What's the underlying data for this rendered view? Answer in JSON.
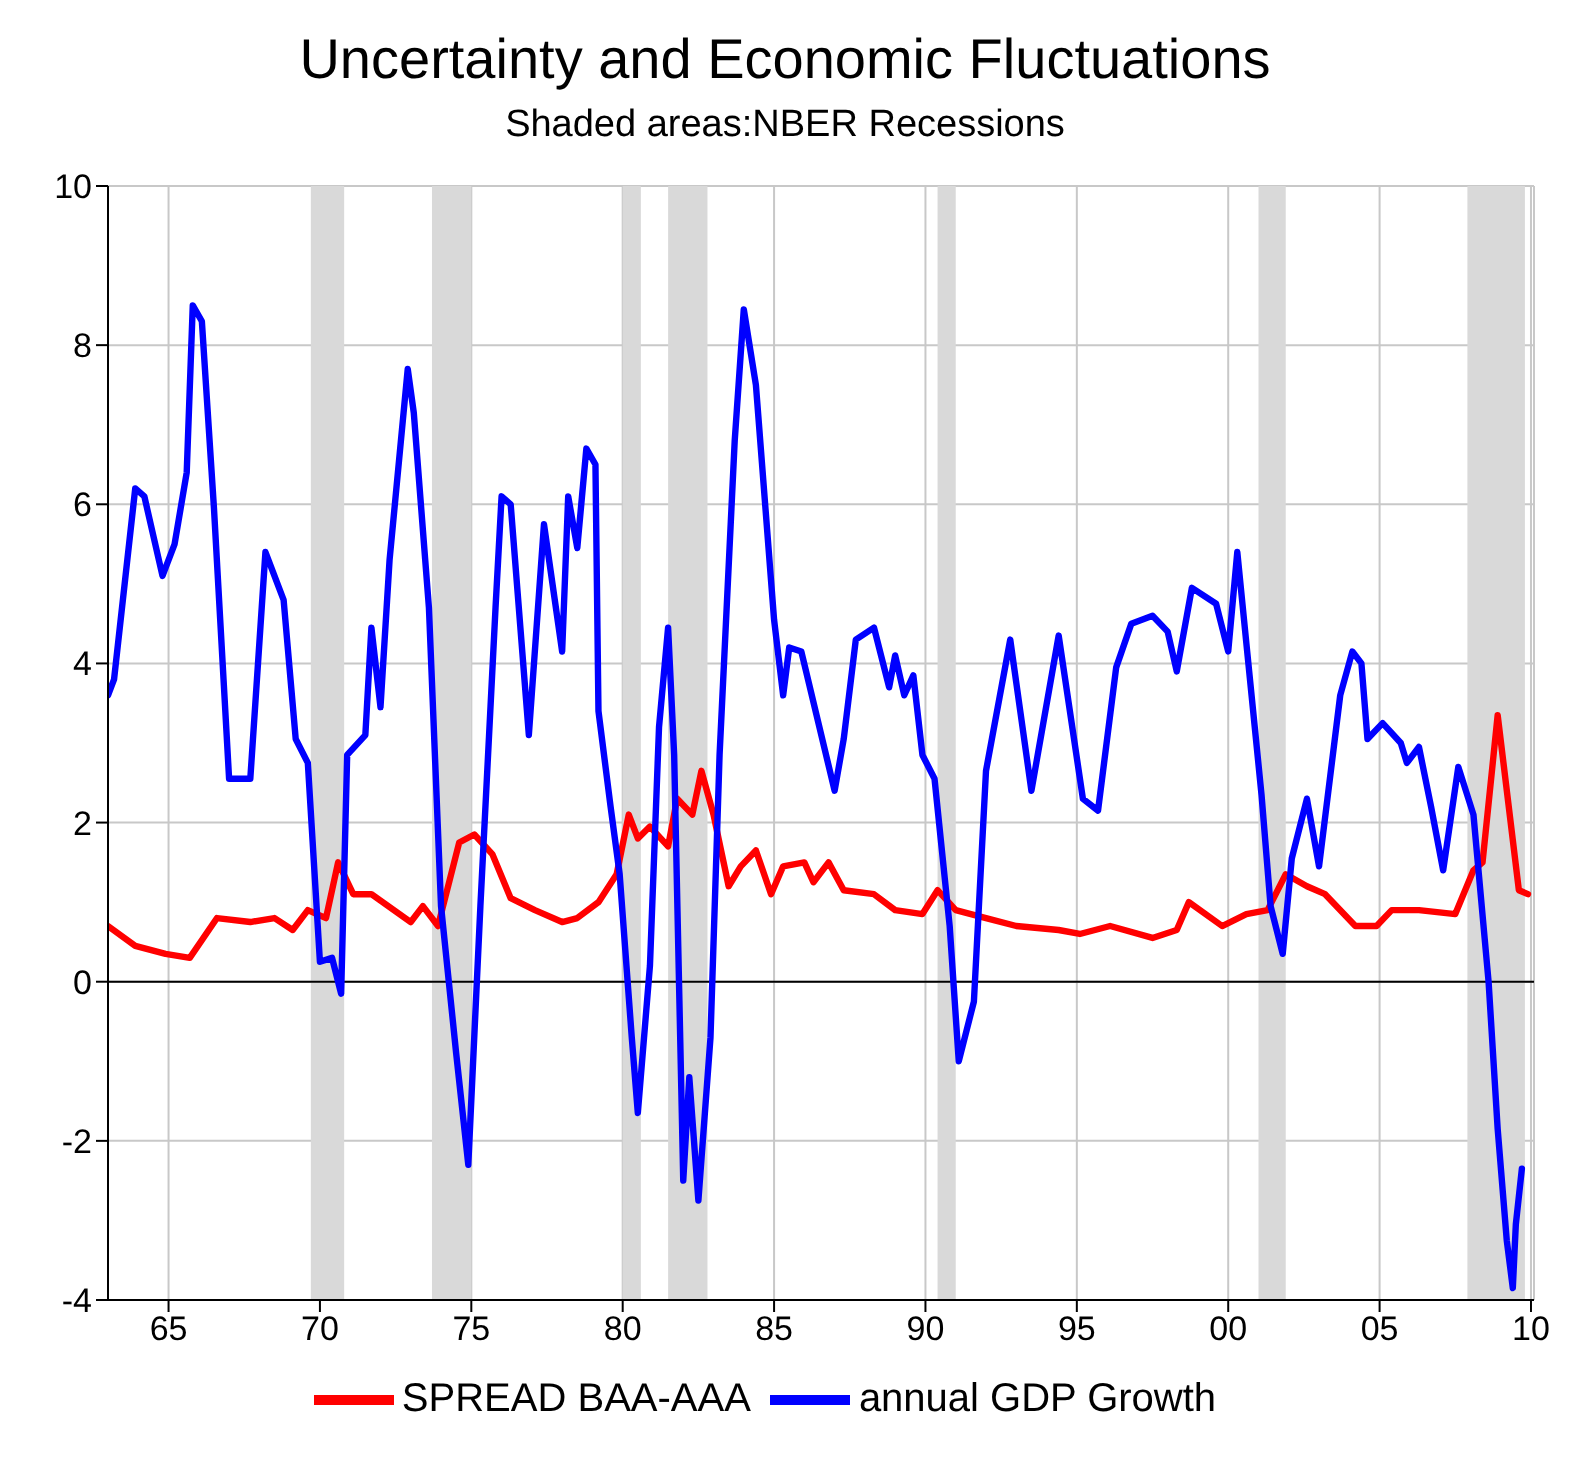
{
  "chart_data": {
    "type": "line",
    "title": "Uncertainty and Economic Fluctuations",
    "subtitle": "Shaded areas:NBER Recessions",
    "xlim": [
      1963,
      2010.1
    ],
    "xticks": [
      {
        "value": 1965,
        "label": "65"
      },
      {
        "value": 1970,
        "label": "70"
      },
      {
        "value": 1975,
        "label": "75"
      },
      {
        "value": 1980,
        "label": "80"
      },
      {
        "value": 1985,
        "label": "85"
      },
      {
        "value": 1990,
        "label": "90"
      },
      {
        "value": 1995,
        "label": "95"
      },
      {
        "value": 2000,
        "label": "00"
      },
      {
        "value": 2005,
        "label": "05"
      },
      {
        "value": 2010,
        "label": "10"
      }
    ],
    "ylim": [
      -4,
      10
    ],
    "yticks": [
      -4,
      -2,
      0,
      2,
      4,
      6,
      8,
      10
    ],
    "grid": true,
    "legend": "bottom",
    "marker": "none",
    "line_style": "solid",
    "ref_lines": [
      {
        "axis": "y",
        "value": 0,
        "color": "#000000"
      }
    ],
    "bands": [
      {
        "axis": "x",
        "from": 1969.7,
        "to": 1970.8,
        "color": "#d9d9d9"
      },
      {
        "axis": "x",
        "from": 1973.7,
        "to": 1975.0,
        "color": "#d9d9d9"
      },
      {
        "axis": "x",
        "from": 1980.0,
        "to": 1980.6,
        "color": "#d9d9d9"
      },
      {
        "axis": "x",
        "from": 1981.5,
        "to": 1982.8,
        "color": "#d9d9d9"
      },
      {
        "axis": "x",
        "from": 1990.4,
        "to": 1991.0,
        "color": "#d9d9d9"
      },
      {
        "axis": "x",
        "from": 2001.0,
        "to": 2001.9,
        "color": "#d9d9d9"
      },
      {
        "axis": "x",
        "from": 2007.9,
        "to": 2009.8,
        "color": "#d9d9d9"
      }
    ],
    "series": [
      {
        "name": "SPREAD BAA-AAA",
        "color": "#ff0000",
        "x": [
          1963.0,
          1963.9,
          1964.9,
          1965.7,
          1966.6,
          1967.7,
          1968.5,
          1969.1,
          1969.6,
          1970.2,
          1970.6,
          1971.1,
          1971.7,
          1973.0,
          1973.4,
          1973.9,
          1974.6,
          1975.1,
          1975.7,
          1976.3,
          1977.1,
          1978.0,
          1978.5,
          1979.2,
          1979.8,
          1980.2,
          1980.5,
          1980.9,
          1981.5,
          1981.8,
          1982.3,
          1982.6,
          1983.0,
          1983.5,
          1983.9,
          1984.4,
          1984.9,
          1985.3,
          1986.0,
          1986.3,
          1986.8,
          1987.3,
          1988.3,
          1989.0,
          1989.9,
          1990.4,
          1991.0,
          1992.0,
          1993.0,
          1994.4,
          1995.1,
          1996.1,
          1997.5,
          1998.3,
          1998.7,
          1999.8,
          2000.6,
          2001.3,
          2001.9,
          2002.6,
          2003.2,
          2004.2,
          2004.9,
          2005.4,
          2006.3,
          2007.5,
          2008.1,
          2008.4,
          2008.9,
          2009.6,
          2009.9
        ],
        "values": [
          0.7,
          0.45,
          0.35,
          0.3,
          0.8,
          0.75,
          0.8,
          0.65,
          0.9,
          0.8,
          1.5,
          1.1,
          1.1,
          0.75,
          0.95,
          0.7,
          1.75,
          1.85,
          1.6,
          1.05,
          0.9,
          0.75,
          0.8,
          1.0,
          1.35,
          2.1,
          1.8,
          1.95,
          1.7,
          2.3,
          2.1,
          2.65,
          2.1,
          1.2,
          1.45,
          1.65,
          1.1,
          1.45,
          1.5,
          1.25,
          1.5,
          1.15,
          1.1,
          0.9,
          0.85,
          1.15,
          0.9,
          0.8,
          0.7,
          0.65,
          0.6,
          0.7,
          0.55,
          0.65,
          1.0,
          0.7,
          0.85,
          0.9,
          1.35,
          1.2,
          1.1,
          0.7,
          0.7,
          0.9,
          0.9,
          0.85,
          1.4,
          1.5,
          3.35,
          1.15,
          1.1
        ]
      },
      {
        "name": "annual GDP Growth",
        "color": "#0000ff",
        "x": [
          1963.0,
          1963.2,
          1963.9,
          1964.2,
          1964.8,
          1965.2,
          1965.6,
          1965.8,
          1966.1,
          1966.5,
          1967.0,
          1967.7,
          1968.2,
          1968.8,
          1969.2,
          1969.6,
          1970.0,
          1970.4,
          1970.7,
          1970.9,
          1971.5,
          1971.7,
          1972.0,
          1972.3,
          1972.9,
          1973.1,
          1973.6,
          1974.0,
          1974.5,
          1974.9,
          1975.3,
          1975.8,
          1976.0,
          1976.3,
          1976.9,
          1977.4,
          1978.0,
          1978.2,
          1978.5,
          1978.8,
          1979.1,
          1979.2,
          1979.6,
          1979.9,
          1980.3,
          1980.5,
          1980.9,
          1981.2,
          1981.5,
          1981.7,
          1982.0,
          1982.2,
          1982.5,
          1982.9,
          1983.2,
          1983.7,
          1984.0,
          1984.4,
          1985.0,
          1985.3,
          1985.5,
          1985.9,
          1987.0,
          1987.3,
          1987.7,
          1988.3,
          1988.8,
          1989.0,
          1989.3,
          1989.6,
          1989.9,
          1990.3,
          1990.8,
          1991.1,
          1991.6,
          1992.0,
          1992.8,
          1993.5,
          1994.4,
          1995.2,
          1995.7,
          1996.3,
          1996.8,
          1997.5,
          1998.0,
          1998.3,
          1998.8,
          1999.6,
          2000.0,
          2000.3,
          2000.6,
          2001.1,
          2001.4,
          2001.8,
          2002.1,
          2002.6,
          2003.0,
          2003.7,
          2004.1,
          2004.4,
          2004.6,
          2005.1,
          2005.7,
          2005.9,
          2006.3,
          2006.7,
          2007.1,
          2007.6,
          2008.1,
          2008.6,
          2008.9,
          2009.2,
          2009.4,
          2009.5,
          2009.7
        ],
        "values": [
          3.6,
          3.8,
          6.2,
          6.1,
          5.1,
          5.5,
          6.4,
          8.5,
          8.3,
          5.95,
          2.55,
          2.55,
          5.4,
          4.8,
          3.05,
          2.75,
          0.25,
          0.3,
          -0.15,
          2.85,
          3.1,
          4.45,
          3.45,
          5.3,
          7.7,
          7.15,
          4.7,
          0.95,
          -0.9,
          -2.3,
          0.95,
          4.7,
          6.1,
          6.0,
          3.1,
          5.75,
          4.15,
          6.1,
          5.45,
          6.7,
          6.5,
          3.4,
          2.2,
          1.35,
          -0.7,
          -1.65,
          0.2,
          3.2,
          4.45,
          2.85,
          -2.5,
          -1.2,
          -2.75,
          -0.7,
          2.85,
          6.8,
          8.45,
          7.5,
          4.55,
          3.6,
          4.2,
          4.15,
          2.4,
          3.05,
          4.3,
          4.45,
          3.7,
          4.1,
          3.6,
          3.85,
          2.85,
          2.55,
          0.7,
          -1.0,
          -0.25,
          2.65,
          4.3,
          2.4,
          4.35,
          2.3,
          2.15,
          3.95,
          4.5,
          4.6,
          4.4,
          3.9,
          4.95,
          4.75,
          4.15,
          5.4,
          4.25,
          2.35,
          0.95,
          0.35,
          1.55,
          2.3,
          1.45,
          3.6,
          4.15,
          4.0,
          3.05,
          3.25,
          3.0,
          2.75,
          2.95,
          2.2,
          1.4,
          2.7,
          2.1,
          0,
          -1.85,
          -3.25,
          -3.85,
          -3.05,
          -2.35
        ]
      }
    ]
  }
}
